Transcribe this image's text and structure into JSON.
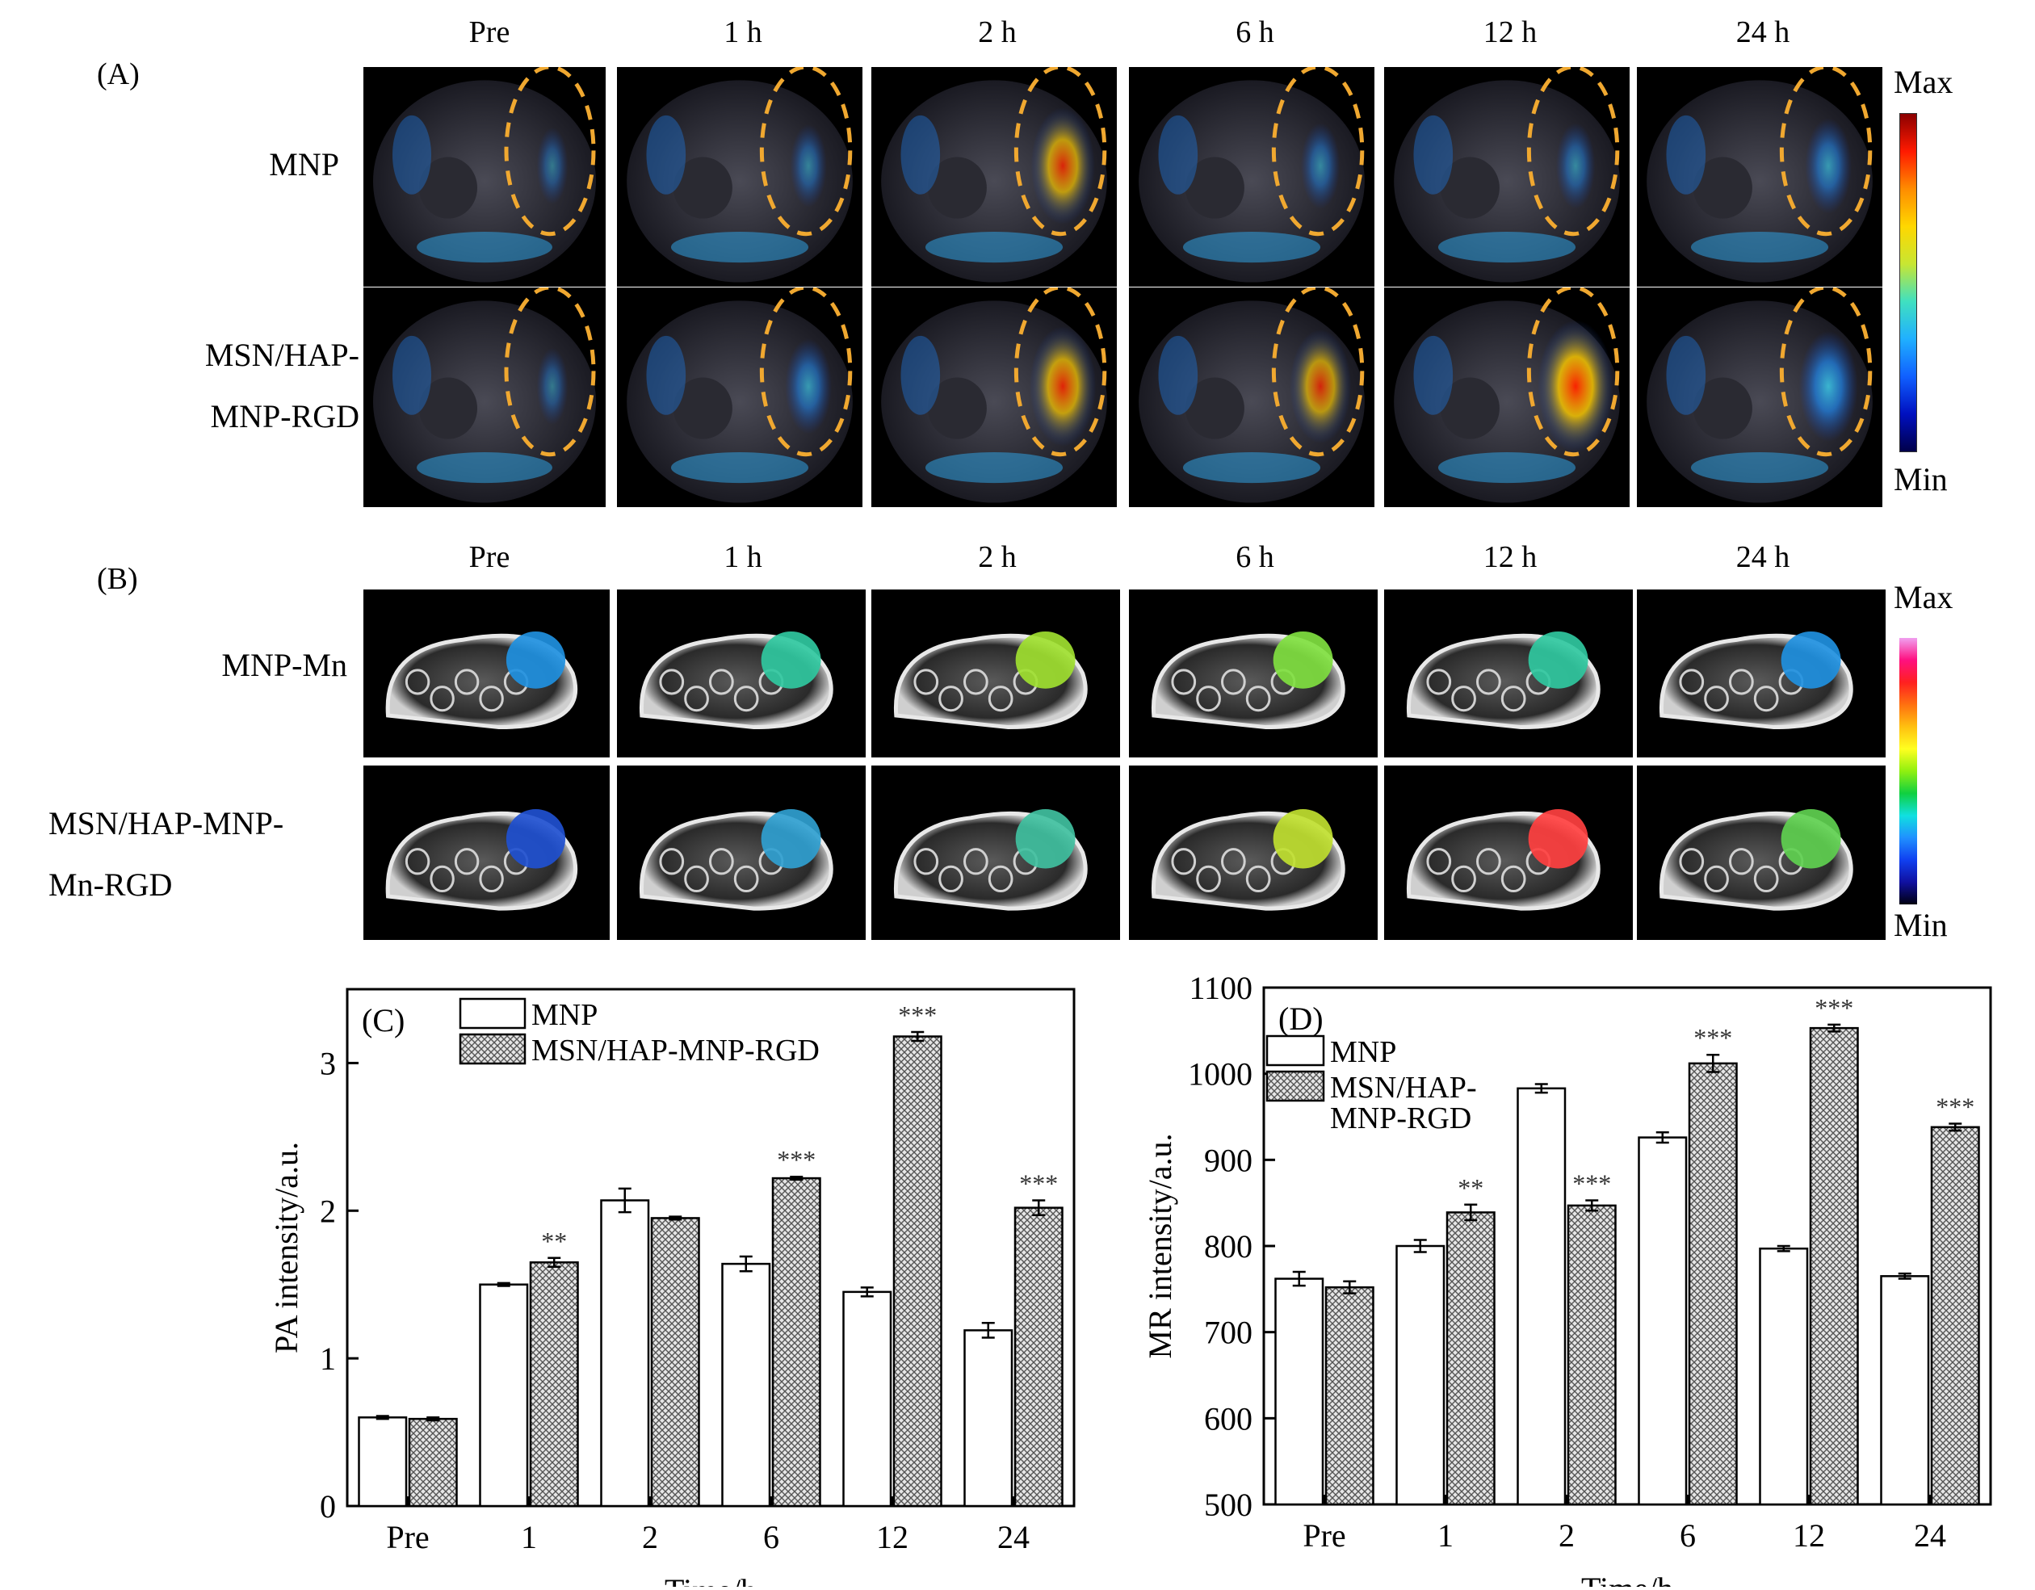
{
  "panel_labels": {
    "a": "(A)",
    "b": "(B)",
    "c": "(C)",
    "d": "(D)"
  },
  "time_points": [
    "Pre",
    "1 h",
    "2 h",
    "6 h",
    "12 h",
    "24 h"
  ],
  "panel_a": {
    "rows": [
      "MNP",
      "MSN/HAP-MNP-RGD"
    ],
    "row_lines": [
      [
        "MNP"
      ],
      [
        "MSN/HAP-",
        "MNP-RGD"
      ]
    ],
    "scale_max": "Max",
    "scale_min": "Min"
  },
  "panel_b": {
    "rows": [
      "MNP-Mn",
      "MSN/HAP-MNP-Mn-RGD"
    ],
    "row_lines": [
      [
        "MNP-Mn"
      ],
      [
        "MSN/HAP-MNP-",
        "Mn-RGD"
      ]
    ],
    "scale_max": "Max",
    "scale_min": "Min"
  },
  "colors": {
    "mnp_bar": "#ffffff",
    "rgd_bar": "#c8c8c8",
    "dashed_ellipse": "#f0a830"
  },
  "chart_data": [
    {
      "type": "bar",
      "panel": "(C)",
      "categories": [
        "Pre",
        "1",
        "2",
        "6",
        "12",
        "24"
      ],
      "series": [
        {
          "name": "MNP",
          "values": [
            0.6,
            1.5,
            2.07,
            1.64,
            1.45,
            1.19
          ],
          "errors": [
            0.01,
            0.01,
            0.08,
            0.05,
            0.03,
            0.05
          ]
        },
        {
          "name": "MSN/HAP-MNP-RGD",
          "values": [
            0.59,
            1.65,
            1.95,
            2.22,
            3.18,
            2.02
          ],
          "errors": [
            0.01,
            0.03,
            0.01,
            0.01,
            0.03,
            0.05
          ]
        }
      ],
      "significance": [
        "",
        "**",
        "",
        "***",
        "***",
        "***"
      ],
      "xlabel": "Time/h",
      "ylabel": "PA intensity/a.u.",
      "ylim": [
        0,
        3.5
      ],
      "yticks": [
        0,
        1,
        2,
        3
      ],
      "legend_position": "top-left",
      "legend_lines": [
        [
          "MNP"
        ],
        [
          "MSN/HAP-MNP-RGD"
        ]
      ]
    },
    {
      "type": "bar",
      "panel": "(D)",
      "categories": [
        "Pre",
        "1",
        "2",
        "6",
        "12",
        "24"
      ],
      "series": [
        {
          "name": "MNP",
          "values": [
            762,
            800,
            983,
            926,
            797,
            765
          ],
          "errors": [
            8,
            7,
            5,
            6,
            3,
            3
          ]
        },
        {
          "name": "MSN/HAP-MNP-RGD",
          "values": [
            752,
            839,
            847,
            1012,
            1053,
            938
          ],
          "errors": [
            7,
            9,
            6,
            10,
            4,
            4
          ]
        }
      ],
      "significance": [
        "",
        "**",
        "***",
        "***",
        "***",
        "***"
      ],
      "xlabel": "Time/h",
      "ylabel": "MR intensity/a.u.",
      "ylim": [
        500,
        1100
      ],
      "yticks": [
        500,
        600,
        700,
        800,
        900,
        1000,
        1100
      ],
      "legend_position": "top-left",
      "legend_lines": [
        [
          "MNP"
        ],
        [
          "MSN/HAP-",
          "MNP-RGD"
        ]
      ]
    }
  ]
}
